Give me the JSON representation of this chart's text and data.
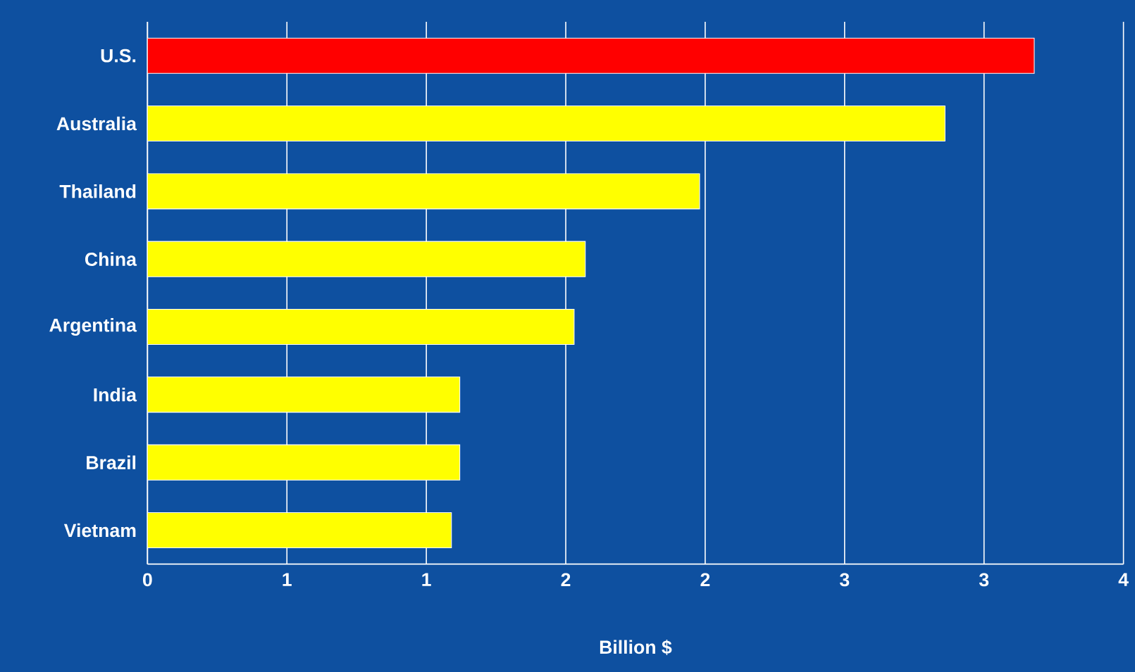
{
  "chart_data": {
    "type": "bar",
    "orientation": "horizontal",
    "xlabel": "Billion $",
    "categories": [
      "U.S.",
      "Australia",
      "Thailand",
      "China",
      "Argentina",
      "India",
      "Brazil",
      "Vietnam"
    ],
    "values": [
      3.18,
      2.86,
      1.98,
      1.57,
      1.53,
      1.12,
      1.12,
      1.09
    ],
    "colors": [
      "#ff0000",
      "#ffff00",
      "#ffff00",
      "#ffff00",
      "#ffff00",
      "#ffff00",
      "#ffff00",
      "#ffff00"
    ],
    "xlim": [
      0,
      3.5
    ],
    "xticks": [
      0,
      {
        "value": 0.5,
        "label": "1"
      },
      {
        "value": 1,
        "label": "1"
      },
      {
        "value": 1.5,
        "label": "2"
      },
      {
        "value": 2,
        "label": "2"
      },
      {
        "value": 2.5,
        "label": "3"
      },
      {
        "value": 3,
        "label": "3"
      },
      {
        "value": 3.5,
        "label": "4"
      }
    ],
    "grid": "x"
  }
}
